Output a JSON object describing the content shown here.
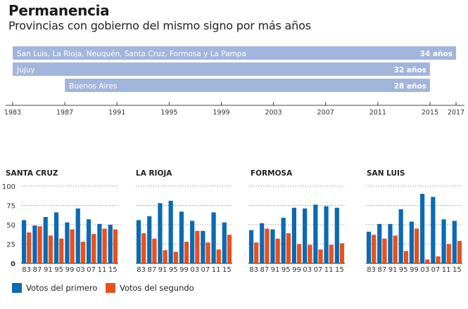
{
  "header": {
    "title": "Permanencia",
    "subtitle": "Provincias con gobierno del mismo signo por más años"
  },
  "colors": {
    "timeline_bar": "#a2b5dc",
    "first": "#0a6ab4",
    "second": "#e8501e",
    "axis": "#444444",
    "grid": "#999999"
  },
  "chart_data": [
    {
      "type": "timeline",
      "title": "Permanencia",
      "subtitle": "Provincias con gobierno del mismo signo por más años",
      "xlim": [
        1983,
        2017
      ],
      "ticks": [
        1983,
        1987,
        1991,
        1995,
        1999,
        2003,
        2007,
        2011,
        2015,
        2017
      ],
      "bars": [
        {
          "label": "San Luis, La Rioja, Neuquén, Santa Cruz, Formosa y La Pampa",
          "start": 1983,
          "end": 2017,
          "value_label": "34 años"
        },
        {
          "label": "Jujuy",
          "start": 1983,
          "end": 2015,
          "value_label": "32 años"
        },
        {
          "label": "Buenos Aires",
          "start": 1987,
          "end": 2015,
          "value_label": "28 años"
        }
      ]
    },
    {
      "type": "bar",
      "grouped": true,
      "ylim": [
        0,
        100
      ],
      "yticks": [
        0,
        25,
        50,
        75,
        100
      ],
      "grid": "dotted",
      "categories": [
        "83",
        "87",
        "91",
        "95",
        "99",
        "03",
        "07",
        "11",
        "15"
      ],
      "legend": {
        "position": "bottom-left",
        "entries": [
          "Votos del primero",
          "Votos del segundo"
        ]
      },
      "panels": [
        {
          "title": "SANTA CRUZ",
          "series": [
            {
              "name": "Votos del primero",
              "values": [
                56,
                49,
                60,
                66,
                53,
                71,
                57,
                51,
                50
              ]
            },
            {
              "name": "Votos del segundo",
              "values": [
                40,
                48,
                36,
                32,
                44,
                28,
                38,
                45,
                44
              ]
            }
          ]
        },
        {
          "title": "LA RIOJA",
          "series": [
            {
              "name": "Votos del primero",
              "values": [
                56,
                61,
                78,
                81,
                67,
                55,
                42,
                66,
                53
              ]
            },
            {
              "name": "Votos del segundo",
              "values": [
                39,
                32,
                17,
                15,
                28,
                42,
                27,
                18,
                37
              ]
            }
          ]
        },
        {
          "title": "FORMOSA",
          "series": [
            {
              "name": "Votos del primero",
              "values": [
                43,
                52,
                44,
                59,
                72,
                71,
                76,
                74,
                72
              ]
            },
            {
              "name": "Votos del segundo",
              "values": [
                27,
                45,
                32,
                39,
                25,
                24,
                18,
                24,
                26
              ]
            }
          ]
        },
        {
          "title": "SAN LUIS",
          "series": [
            {
              "name": "Votos del primero",
              "values": [
                41,
                51,
                51,
                70,
                54,
                90,
                86,
                57,
                55
              ]
            },
            {
              "name": "Votos del segundo",
              "values": [
                37,
                32,
                36,
                16,
                45,
                5,
                9,
                25,
                29
              ]
            }
          ]
        }
      ]
    }
  ]
}
